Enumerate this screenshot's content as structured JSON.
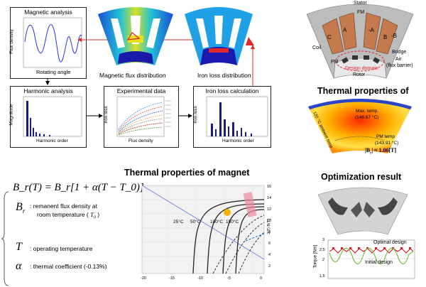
{
  "panels": {
    "magnetic_analysis": {
      "title": "Magnetic analysis",
      "ylabel": "Flux density",
      "xlabel": "Rotating angle"
    },
    "harmonic_analysis": {
      "title": "Harmonic analysis",
      "ylabel": "Magnitude",
      "xlabel": "Harmonic order"
    },
    "experimental_data": {
      "title": "Experimental data",
      "ylabel": "Iron loss",
      "xlabel": "Flux density"
    },
    "iron_loss_calc": {
      "title": "Iron loss calculation",
      "ylabel": "Iron loss",
      "xlabel": "Harmonic order"
    }
  },
  "captions": {
    "flux_distribution": "Magnetic flux distribution",
    "iron_loss_distribution": "Iron loss distribution"
  },
  "motor": {
    "stator": "Stator",
    "fm": "FM",
    "coil": "Coil",
    "pm": "PM",
    "phases": [
      "C",
      "A",
      "-A",
      "B",
      "-B"
    ],
    "bridge": "Bridge",
    "air": "Air",
    "flux_barrier": "(flux barrier)",
    "design_domain": "Design domain",
    "rotor": "Rotor"
  },
  "thermal_top": {
    "title": "Thermal properties of",
    "max_temp": "Max. temp.",
    "max_temp_value": "(146.67 °C)",
    "pm_temp": "PM temp",
    "pm_temp_value": "(143.91 °C)",
    "ambient": "120 °C ambient temp",
    "br_eq": "|B",
    "br_eq_rest": "| ≈ 1.06[T]"
  },
  "thermal_magnet": {
    "title": "Thermal properties of magnet",
    "formula": "B_r(T) = B_r[1 + α(T − T_0)]",
    "br_symbol": "B",
    "br_desc1": ": remanent flux density at",
    "br_desc2": "room temperature (",
    "t0": "T",
    "t_symbol": "T",
    "t_desc": ": operating temperature",
    "alpha_symbol": "α",
    "alpha_desc": ": thermal coefficient (-0.13%)"
  },
  "bh_chart": {
    "temps": [
      "25°C",
      "50°C",
      "100°C",
      "150°C"
    ],
    "x_ticks": [
      "-20",
      "-15",
      "-10",
      "-5",
      "0"
    ],
    "y_ticks": [
      "16",
      "14",
      "12",
      "10",
      "8",
      "6",
      "4",
      "2"
    ],
    "right_label": "J(T) B(T)"
  },
  "optimization": {
    "title": "Optimization result",
    "ylabel": "Torque [Nm]",
    "y_ticks": [
      "3",
      "2.5",
      "2",
      "1.5"
    ],
    "optimal": "Optimal design",
    "initial": "Initial design"
  },
  "colors": {
    "coil": "#c47a4d",
    "stator": "#b8b8b8",
    "arrow": "#e0282a",
    "blue": "#1a1a8c"
  }
}
